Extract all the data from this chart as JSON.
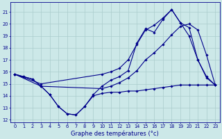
{
  "xlabel": "Graphe des températures (°c)",
  "background_color": "#cce8e8",
  "grid_color": "#aacccc",
  "line_color": "#00008b",
  "xlim": [
    -0.5,
    23.5
  ],
  "ylim": [
    11.8,
    21.8
  ],
  "yticks": [
    12,
    13,
    14,
    15,
    16,
    17,
    18,
    19,
    20,
    21
  ],
  "xticks": [
    0,
    1,
    2,
    3,
    4,
    5,
    6,
    7,
    8,
    9,
    10,
    11,
    12,
    13,
    14,
    15,
    16,
    17,
    18,
    19,
    20,
    21,
    22,
    23
  ],
  "curve1_x": [
    0,
    1,
    2,
    3,
    4,
    5,
    6,
    7,
    8,
    9,
    10,
    11,
    12,
    13,
    14,
    15,
    16,
    17,
    18,
    19,
    20,
    21,
    22,
    23
  ],
  "curve1_y": [
    15.8,
    15.6,
    15.4,
    14.8,
    14.1,
    13.1,
    12.5,
    12.4,
    13.1,
    14.1,
    14.8,
    15.3,
    15.6,
    16.1,
    18.4,
    19.6,
    19.3,
    20.4,
    21.2,
    20.1,
    19.7,
    17.0,
    15.6,
    14.9
  ],
  "curve2_x": [
    0,
    3,
    10,
    11,
    12,
    13,
    14,
    15,
    16,
    17,
    18,
    19,
    20,
    21,
    22,
    23
  ],
  "curve2_y": [
    15.8,
    15.0,
    15.8,
    16.0,
    16.3,
    17.0,
    18.3,
    19.5,
    19.9,
    20.5,
    21.2,
    20.1,
    19.0,
    17.0,
    15.5,
    14.9
  ],
  "curve3_x": [
    0,
    3,
    10,
    11,
    12,
    13,
    14,
    15,
    16,
    17,
    18,
    19,
    20,
    21,
    22,
    23
  ],
  "curve3_y": [
    15.8,
    14.8,
    14.6,
    14.8,
    15.1,
    15.5,
    16.1,
    17.0,
    17.6,
    18.3,
    19.1,
    19.8,
    20.0,
    19.5,
    17.4,
    14.9
  ],
  "curve4_x": [
    0,
    1,
    2,
    3,
    4,
    5,
    6,
    7,
    8,
    9,
    10,
    11,
    12,
    13,
    14,
    15,
    16,
    17,
    18,
    19,
    20,
    21,
    22,
    23
  ],
  "curve4_y": [
    15.8,
    15.6,
    15.4,
    14.8,
    14.1,
    13.1,
    12.5,
    12.4,
    13.1,
    14.0,
    14.2,
    14.3,
    14.3,
    14.4,
    14.4,
    14.5,
    14.6,
    14.7,
    14.8,
    14.9,
    14.9,
    14.9,
    14.9,
    14.9
  ]
}
